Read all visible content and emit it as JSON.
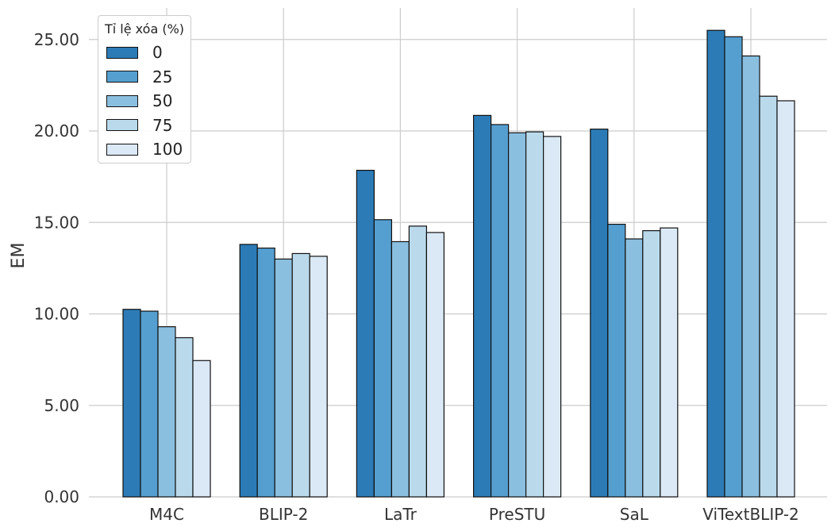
{
  "chart_data": {
    "type": "bar",
    "title": "",
    "xlabel": "",
    "ylabel": "EM",
    "ylim": [
      0,
      26.7
    ],
    "yticks": [
      "0.00",
      "5.00",
      "10.00",
      "15.00",
      "20.00",
      "25.00"
    ],
    "ytick_values": [
      0,
      5,
      10,
      15,
      20,
      25
    ],
    "grid": true,
    "legend_title": "Tỉ lệ xóa (%)",
    "legend_position": "top-left",
    "categories": [
      "M4C",
      "BLIP-2",
      "LaTr",
      "PreSTU",
      "SaL",
      "ViTextBLIP-2"
    ],
    "series": [
      {
        "name": "0",
        "color": "#2c7bb6",
        "values": [
          10.25,
          13.8,
          17.85,
          20.85,
          20.1,
          25.5
        ]
      },
      {
        "name": "25",
        "color": "#559fd0",
        "values": [
          10.15,
          13.6,
          15.15,
          20.35,
          14.9,
          25.15
        ]
      },
      {
        "name": "50",
        "color": "#8bbfdf",
        "values": [
          9.3,
          13.0,
          13.95,
          19.9,
          14.1,
          24.1
        ]
      },
      {
        "name": "75",
        "color": "#badaec",
        "values": [
          8.7,
          13.3,
          14.8,
          19.95,
          14.55,
          21.9
        ]
      },
      {
        "name": "100",
        "color": "#dbe9f6",
        "values": [
          7.45,
          13.15,
          14.45,
          19.7,
          14.7,
          21.65
        ]
      }
    ]
  }
}
